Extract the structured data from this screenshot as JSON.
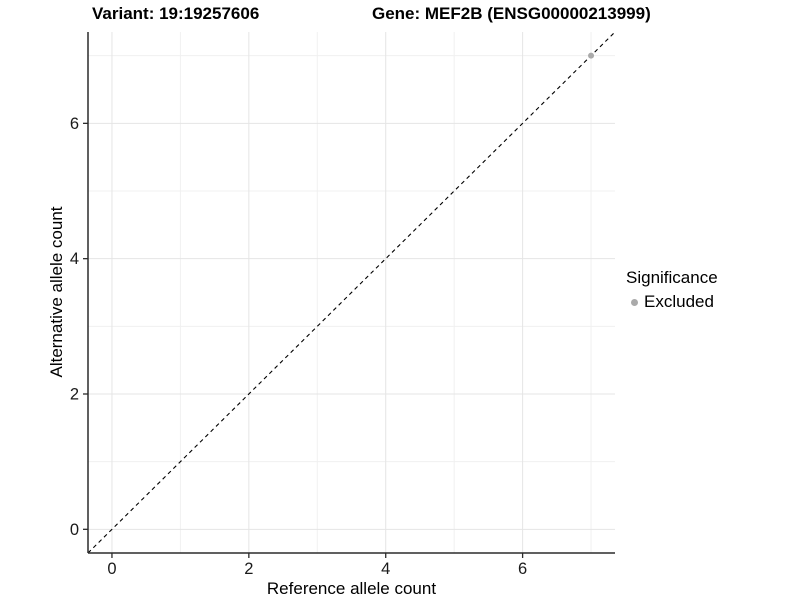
{
  "figure": {
    "titles": {
      "variant": "Variant: 19:19257606",
      "gene": "Gene: MEF2B (ENSG00000213999)"
    },
    "legend": {
      "title": "Significance",
      "items": [
        {
          "label": "Excluded",
          "color": "#aaaaaa"
        }
      ]
    }
  },
  "chart_data": {
    "type": "scatter",
    "xlabel": "Reference allele count",
    "ylabel": "Alternative allele count",
    "xlim": [
      -0.35,
      7.35
    ],
    "ylim": [
      -0.35,
      7.35
    ],
    "xticks": [
      0,
      2,
      4,
      6
    ],
    "yticks": [
      0,
      2,
      4,
      6
    ],
    "minor_ticks": [
      1,
      3,
      5,
      7
    ],
    "grid": "major and minor, light gray, on white background",
    "legend_position": "right-middle",
    "series": [
      {
        "name": "Excluded",
        "color": "#aaaaaa",
        "points": [
          {
            "x": 7,
            "y": 7
          }
        ]
      }
    ],
    "reference_line": {
      "kind": "identity y = x, corner to corner",
      "style": "dashed",
      "color": "#000000"
    },
    "style_colors": {
      "grid_major": "#e5e5e5",
      "grid_minor": "#f0f0f0",
      "axis_line": "#2b2b2b",
      "tick_label": "#1a1a1a"
    }
  }
}
